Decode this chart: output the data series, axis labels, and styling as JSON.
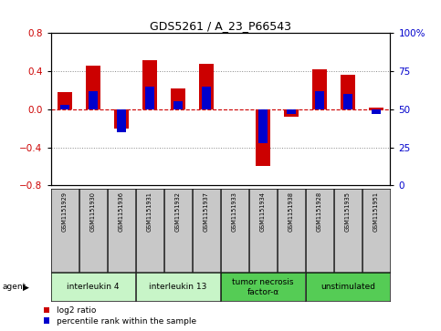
{
  "title": "GDS5261 / A_23_P66543",
  "samples": [
    "GSM1151929",
    "GSM1151930",
    "GSM1151936",
    "GSM1151931",
    "GSM1151932",
    "GSM1151937",
    "GSM1151933",
    "GSM1151934",
    "GSM1151938",
    "GSM1151928",
    "GSM1151935",
    "GSM1151951"
  ],
  "log2_ratio": [
    0.18,
    0.46,
    -0.2,
    0.52,
    0.22,
    0.48,
    0.0,
    -0.6,
    -0.08,
    0.42,
    0.36,
    0.02
  ],
  "percentile_rank": [
    53,
    62,
    35,
    65,
    55,
    65,
    50,
    28,
    47,
    62,
    60,
    47
  ],
  "agents": [
    {
      "label": "interleukin 4",
      "start": 0,
      "end": 3,
      "color": "#c8f5c8"
    },
    {
      "label": "interleukin 13",
      "start": 3,
      "end": 6,
      "color": "#c8f5c8"
    },
    {
      "label": "tumor necrosis\nfactor-α",
      "start": 6,
      "end": 9,
      "color": "#55cc55"
    },
    {
      "label": "unstimulated",
      "start": 9,
      "end": 12,
      "color": "#55cc55"
    }
  ],
  "ylim_left": [
    -0.8,
    0.8
  ],
  "ylim_right": [
    0,
    100
  ],
  "yticks_left": [
    -0.8,
    -0.4,
    0.0,
    0.4,
    0.8
  ],
  "yticks_right": [
    0,
    25,
    50,
    75,
    100
  ],
  "bar_width": 0.5,
  "blue_bar_width": 0.3,
  "red_color": "#cc0000",
  "blue_color": "#0000cc",
  "bg_color": "#ffffff",
  "plot_bg": "#ffffff",
  "grid_color": "#888888",
  "sample_box_color": "#c8c8c8"
}
